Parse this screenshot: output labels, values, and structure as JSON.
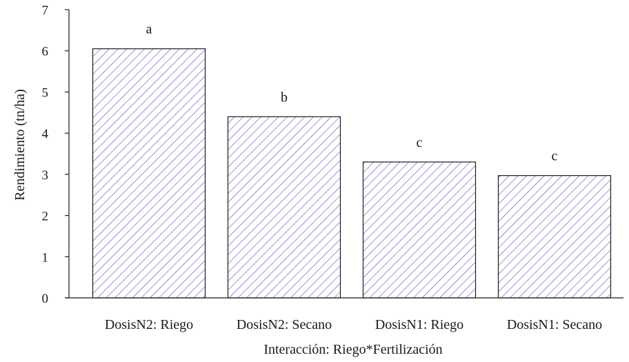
{
  "chart_data": {
    "type": "bar",
    "categories": [
      "DosisN2: Riego",
      "DosisN2: Secano",
      "DosisN1: Riego",
      "DosisN1: Secano"
    ],
    "values": [
      6.05,
      4.4,
      3.3,
      2.97
    ],
    "significance_letters": [
      "a",
      "b",
      "c",
      "c"
    ],
    "xlabel": "Interacción: Riego*Fertilización",
    "ylabel": "Rendimiento (tn/ha)",
    "ylim": [
      0,
      7
    ],
    "yticks": [
      0,
      1,
      2,
      3,
      4,
      5,
      6,
      7
    ],
    "grid": false,
    "bar_fill": "hatched",
    "hatch_color": "#3b3fc2",
    "bar_edge_color": "#1a1a1a"
  }
}
